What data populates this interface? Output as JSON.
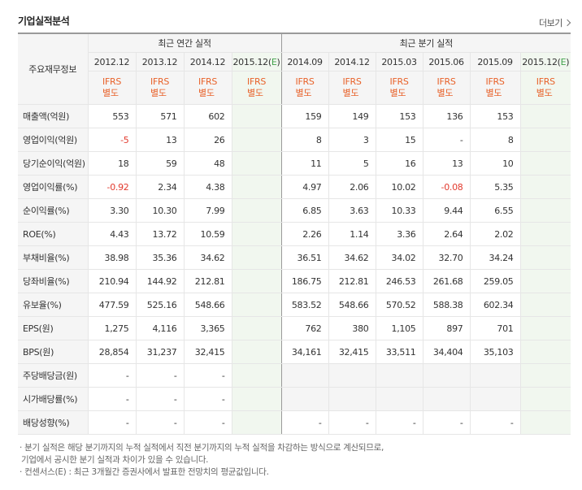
{
  "page": {
    "title": "기업실적분석",
    "more": "더보기"
  },
  "table": {
    "row_header_title": "주요재무정보",
    "annual_title": "최근 연간 실적",
    "quarterly_title": "최근 분기 실적",
    "annual_periods": [
      "2012.12",
      "2013.12",
      "2014.12"
    ],
    "annual_estimate": {
      "base": "2015.12(",
      "mark": "E",
      "end": ")"
    },
    "quarterly_periods": [
      "2014.09",
      "2014.12",
      "2015.03",
      "2015.06",
      "2015.09"
    ],
    "quarterly_estimate": {
      "base": "2015.12(",
      "mark": "E",
      "end": ")"
    },
    "ifrs_line1": "IFRS",
    "ifrs_line2": "별도",
    "rows": [
      {
        "label": "매출액(억원)",
        "annual": [
          "553",
          "571",
          "602"
        ],
        "quarterly": [
          "159",
          "149",
          "153",
          "136",
          "153"
        ]
      },
      {
        "label": "영업이익(억원)",
        "annual": [
          "-5",
          "13",
          "26"
        ],
        "quarterly": [
          "8",
          "3",
          "15",
          "-",
          "8"
        ]
      },
      {
        "label": "당기순이익(억원)",
        "annual": [
          "18",
          "59",
          "48"
        ],
        "quarterly": [
          "11",
          "5",
          "16",
          "13",
          "10"
        ]
      },
      {
        "label": "영업이익률(%)",
        "annual": [
          "-0.92",
          "2.34",
          "4.38"
        ],
        "quarterly": [
          "4.97",
          "2.06",
          "10.02",
          "-0.08",
          "5.35"
        ]
      },
      {
        "label": "순이익률(%)",
        "annual": [
          "3.30",
          "10.30",
          "7.99"
        ],
        "quarterly": [
          "6.85",
          "3.63",
          "10.33",
          "9.44",
          "6.55"
        ]
      },
      {
        "label": "ROE(%)",
        "annual": [
          "4.43",
          "13.72",
          "10.59"
        ],
        "quarterly": [
          "2.26",
          "1.14",
          "3.36",
          "2.64",
          "2.02"
        ]
      },
      {
        "label": "부채비율(%)",
        "annual": [
          "38.98",
          "35.36",
          "34.62"
        ],
        "quarterly": [
          "36.51",
          "34.62",
          "34.02",
          "32.70",
          "34.24"
        ]
      },
      {
        "label": "당좌비율(%)",
        "annual": [
          "210.94",
          "144.92",
          "212.81"
        ],
        "quarterly": [
          "186.75",
          "212.81",
          "246.53",
          "261.68",
          "259.05"
        ]
      },
      {
        "label": "유보율(%)",
        "annual": [
          "477.59",
          "525.16",
          "548.66"
        ],
        "quarterly": [
          "583.52",
          "548.66",
          "570.52",
          "588.38",
          "602.34"
        ]
      },
      {
        "label": "EPS(원)",
        "annual": [
          "1,275",
          "4,116",
          "3,365"
        ],
        "quarterly": [
          "762",
          "380",
          "1,105",
          "897",
          "701"
        ]
      },
      {
        "label": "BPS(원)",
        "annual": [
          "28,854",
          "31,237",
          "32,415"
        ],
        "quarterly": [
          "34,161",
          "32,415",
          "33,511",
          "34,404",
          "35,103"
        ]
      },
      {
        "label": "주당배당금(원)",
        "annual": [
          "-",
          "-",
          "-"
        ],
        "quarterly": [
          "",
          "",
          "",
          "",
          ""
        ]
      },
      {
        "label": "시가배당률(%)",
        "annual": [
          "-",
          "-",
          "-"
        ],
        "quarterly": [
          "",
          "",
          "",
          "",
          ""
        ]
      },
      {
        "label": "배당성향(%)",
        "annual": [
          "-",
          "-",
          "-"
        ],
        "quarterly": [
          "-",
          "-",
          "-",
          "-",
          "-"
        ]
      }
    ],
    "gray_quarter_rows": [
      11,
      12
    ],
    "section_break_rows": [
      3,
      6,
      11
    ]
  },
  "notes": [
    "· 분기 실적은 해당 분기까지의 누적 실적에서 직전 분기까지의 누적 실적을 차감하는 방식으로 계산되므로,",
    "  기업에서 공시한 분기 실적과 차이가 있을 수 있습니다.",
    "· 컨센서스(E) : 최근 3개월간 증권사에서 발표한 전망치의 평균값입니다."
  ],
  "colors": {
    "ifrs": "#e8622a",
    "negative": "#e23a2e",
    "estimate_bg": "#f1f7ef",
    "header_bg": "#f5f5f5",
    "estimate_mark": "#42a24b"
  }
}
